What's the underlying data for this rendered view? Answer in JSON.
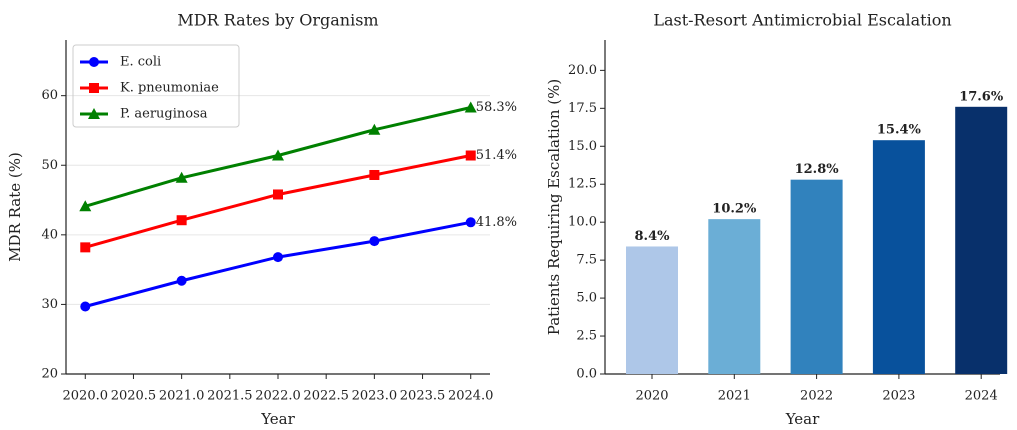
{
  "chart_data": [
    {
      "type": "line",
      "title": "MDR Rates by Organism",
      "xlabel": "Year",
      "ylabel": "MDR Rate (%)",
      "x": [
        2020,
        2021,
        2022,
        2023,
        2024
      ],
      "series": [
        {
          "name": "E. coli",
          "color": "#0000ff",
          "marker": "circle",
          "values": [
            29.7,
            33.4,
            36.8,
            39.1,
            41.8
          ],
          "value_labels": [
            null,
            null,
            null,
            null,
            "41.8%"
          ]
        },
        {
          "name": "K. pneumoniae",
          "color": "#ff0000",
          "marker": "square",
          "values": [
            38.2,
            42.1,
            45.8,
            48.6,
            51.4
          ],
          "value_labels": [
            null,
            null,
            null,
            null,
            "51.4%"
          ]
        },
        {
          "name": "P. aeruginosa",
          "color": "#008000",
          "marker": "triangle",
          "values": [
            44.1,
            48.2,
            51.4,
            55.1,
            58.3
          ],
          "value_labels": [
            null,
            null,
            null,
            null,
            "58.3%"
          ]
        }
      ],
      "xlim": [
        2019.8,
        2024.2
      ],
      "xticks": [
        {
          "value": 2020,
          "label": "2020.0"
        },
        2020.5,
        {
          "value": 2021,
          "label": "2021.0"
        },
        2021.5,
        {
          "value": 2022,
          "label": "2022.0"
        },
        2022.5,
        {
          "value": 2023,
          "label": "2023.0"
        },
        2023.5,
        {
          "value": 2024,
          "label": "2024.0"
        }
      ],
      "ylim": [
        20,
        68
      ],
      "yticks": [
        20,
        30,
        40,
        50,
        60
      ],
      "grid": true,
      "legend": "upper left"
    },
    {
      "type": "bar",
      "title": "Last-Resort Antimicrobial Escalation",
      "xlabel": "Year",
      "ylabel": "Patients Requiring Escalation (%)",
      "categories": [
        "2020",
        "2021",
        "2022",
        "2023",
        "2024"
      ],
      "values": [
        8.4,
        10.2,
        12.8,
        15.4,
        17.6
      ],
      "value_labels": [
        "8.4%",
        "10.2%",
        "12.8%",
        "15.4%",
        "17.6%"
      ],
      "colors": [
        "#aec7e8",
        "#6baed6",
        "#3182bd",
        "#08519c",
        "#08306b"
      ],
      "ylim": [
        0,
        22
      ],
      "yticks": [
        {
          "value": 0,
          "label": "0.0"
        },
        2.5,
        {
          "value": 5,
          "label": "5.0"
        },
        7.5,
        {
          "value": 10,
          "label": "10.0"
        },
        12.5,
        {
          "value": 15,
          "label": "15.0"
        },
        17.5,
        {
          "value": 20,
          "label": "20.0"
        }
      ]
    }
  ]
}
